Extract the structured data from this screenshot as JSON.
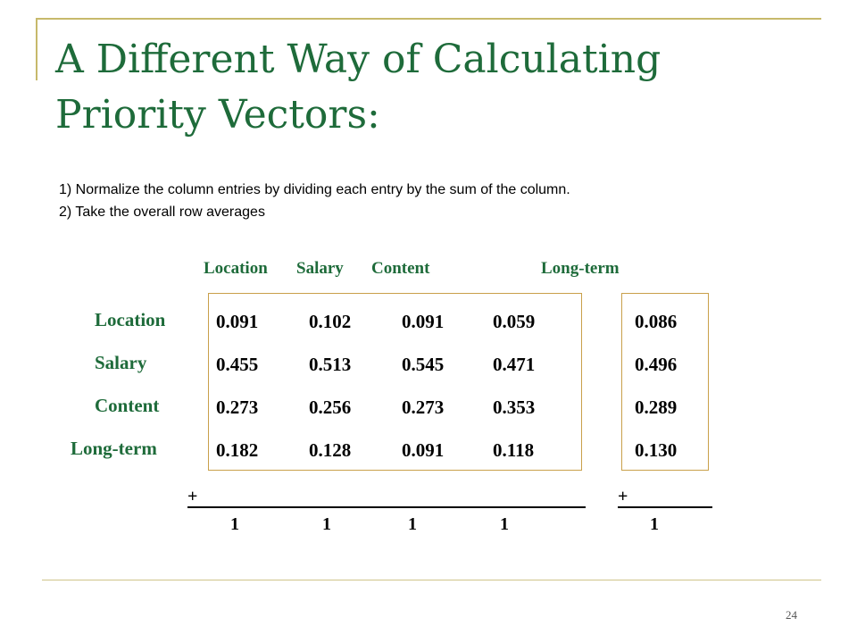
{
  "title": "A Different Way of Calculating Priority Vectors:",
  "steps": [
    "1) Normalize the column entries by dividing each entry by the sum of the column.",
    "2) Take the overall row averages"
  ],
  "column_headers": [
    "Location",
    "Salary",
    "Content",
    "Long-term"
  ],
  "row_labels": [
    "Location",
    "Salary",
    "Content",
    "Long-term"
  ],
  "matrix": [
    [
      "0.091",
      "0.102",
      "0.091",
      "0.059"
    ],
    [
      "0.455",
      "0.513",
      "0.545",
      "0.471"
    ],
    [
      "0.273",
      "0.256",
      "0.273",
      "0.353"
    ],
    [
      "0.182",
      "0.128",
      "0.091",
      "0.118"
    ]
  ],
  "averages": [
    "0.086",
    "0.496",
    "0.289",
    "0.130"
  ],
  "sum_symbol": "+",
  "column_sums": [
    "1",
    "1",
    "1",
    "1"
  ],
  "average_sum": "1",
  "page_number": "24"
}
